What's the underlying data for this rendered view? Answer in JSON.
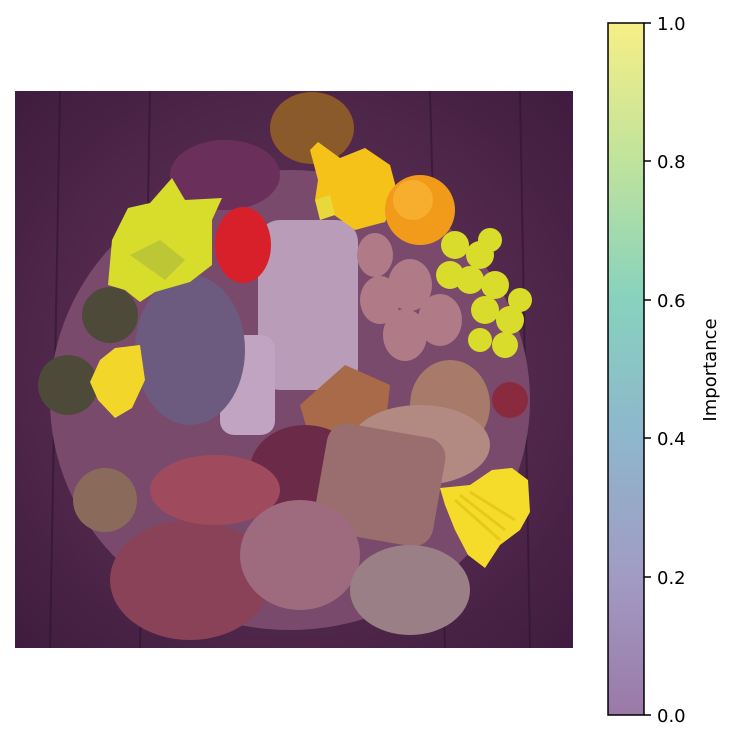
{
  "image": {
    "subject": "food-assortment-photo",
    "overlay_colormap": "viridis (semi-transparent)"
  },
  "colorbar": {
    "label": "Importance",
    "ticks": [
      "0.0",
      "0.2",
      "0.4",
      "0.6",
      "0.8",
      "1.0"
    ],
    "colors": {
      "low": "#9c7aa6",
      "mid": "#8fd3c0",
      "high": "#f7ef86"
    }
  },
  "highlight_color": "#f2ea2a",
  "base_tint": "#5a2a5a"
}
